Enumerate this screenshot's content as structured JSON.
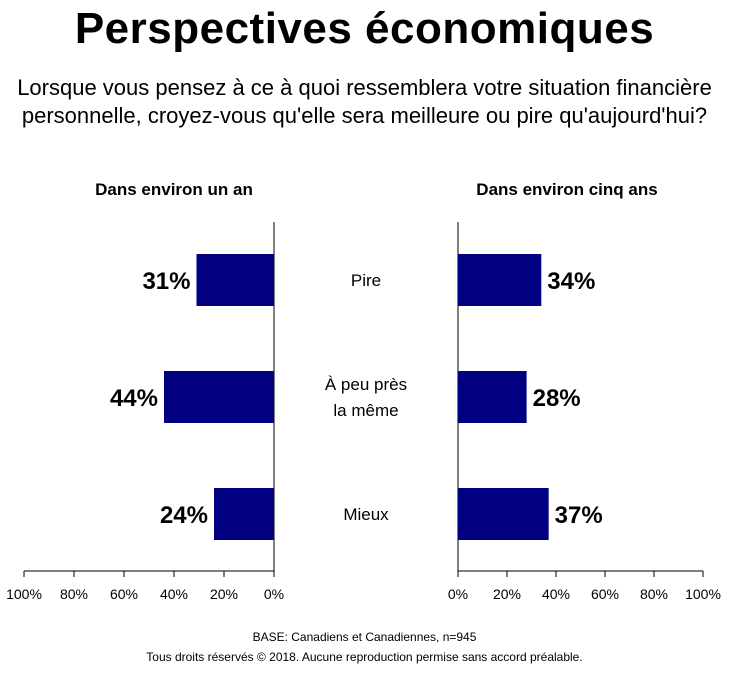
{
  "title": "Perspectives économiques",
  "subtitle_line1": "Lorsque vous pensez à ce à quoi ressemblera votre situation financière",
  "subtitle_line2": "personnelle, croyez-vous qu'elle sera meilleure ou pire qu'aujourd'hui?",
  "footer": {
    "base": "BASE: Canadiens et Canadiennes,  n=945",
    "rights": "Tous droits réservés © 2018. Aucune reproduction  permise sans accord préalable."
  },
  "colors": {
    "bar": "#000080",
    "axis": "#000000"
  },
  "chart_data": [
    {
      "type": "bar",
      "orientation": "horizontal",
      "direction": "right-to-left",
      "title": "Dans environ un an",
      "categories": [
        "Pire",
        "À peu près\nla même",
        "Mieux"
      ],
      "values": [
        31,
        44,
        24
      ],
      "data_labels": [
        "31%",
        "44%",
        "24%"
      ],
      "xlim": [
        0,
        100
      ],
      "ticks": [
        "100%",
        "80%",
        "60%",
        "40%",
        "20%",
        "0%"
      ],
      "grid": false
    },
    {
      "type": "bar",
      "orientation": "horizontal",
      "direction": "left-to-right",
      "title": "Dans environ cinq ans",
      "categories": [
        "Pire",
        "À peu près\nla même",
        "Mieux"
      ],
      "values": [
        34,
        28,
        37
      ],
      "data_labels": [
        "34%",
        "28%",
        "37%"
      ],
      "xlim": [
        0,
        100
      ],
      "ticks": [
        "0%",
        "20%",
        "40%",
        "60%",
        "80%",
        "100%"
      ],
      "grid": false
    }
  ],
  "center_labels": [
    {
      "lines": [
        "Pire"
      ]
    },
    {
      "lines": [
        "À peu près",
        "la même"
      ]
    },
    {
      "lines": [
        "Mieux"
      ]
    }
  ]
}
